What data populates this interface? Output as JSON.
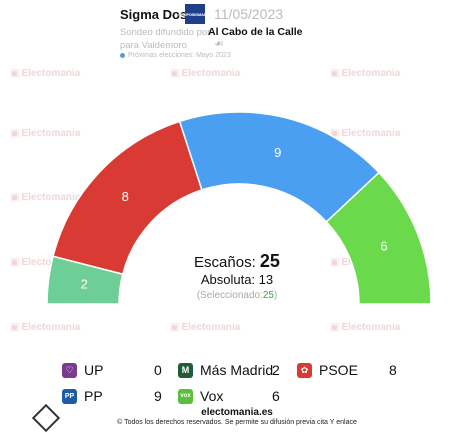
{
  "header": {
    "pollster": "Sigma Dos",
    "logo_text": "GRUPOSIGMADOS",
    "date": "11/05/2023",
    "subtitle_line1": "Sondeo difundido por",
    "medio": "Al Cabo de la Calle",
    "subtitle_line2": "para Valdemoro",
    "next_elections": "Próximas elecciones: Mayo 2023"
  },
  "watermark": "Electomania",
  "center": {
    "seats_label": "Escaños:",
    "seats_total": "25",
    "majority_label": "Absoluta:",
    "majority_value": "13",
    "selected_label": "(Seleccionado:",
    "selected_value": "25",
    "selected_close": ")"
  },
  "chart_data": {
    "type": "parliament-semicircle",
    "total_seats": 25,
    "majority": 13,
    "series": [
      {
        "name": "UP",
        "seats": 0,
        "color": "#7b3b8c"
      },
      {
        "name": "Más Madrid",
        "seats": 2,
        "color": "#6dcf95"
      },
      {
        "name": "PSOE",
        "seats": 8,
        "color": "#d93a33"
      },
      {
        "name": "PP",
        "seats": 9,
        "color": "#4a9ff0"
      },
      {
        "name": "Vox",
        "seats": 6,
        "color": "#6ad94c"
      }
    ],
    "arc_order": [
      "Más Madrid",
      "PSOE",
      "PP",
      "Vox"
    ]
  },
  "legend": [
    {
      "name": "UP",
      "value": "0",
      "icon": "up-heart-icon",
      "color": "#7b3b8c",
      "glyph": "♡"
    },
    {
      "name": "Más Madrid",
      "value": "2",
      "icon": "mas-madrid-icon",
      "color": "#1f5c3a",
      "glyph": "M"
    },
    {
      "name": "PSOE",
      "value": "8",
      "icon": "psoe-rose-icon",
      "color": "#d93a33",
      "glyph": "✿"
    },
    {
      "name": "PP",
      "value": "9",
      "icon": "pp-gull-icon",
      "color": "#1f5ca8",
      "glyph": "PP"
    },
    {
      "name": "Vox",
      "value": "6",
      "icon": "vox-icon",
      "color": "#5bbf3a",
      "glyph": "vox"
    }
  ],
  "footer": {
    "site": "electomania.es",
    "copyright": "© Todos los derechos reservados. Se permite su difusión previa cita Y enlace"
  }
}
